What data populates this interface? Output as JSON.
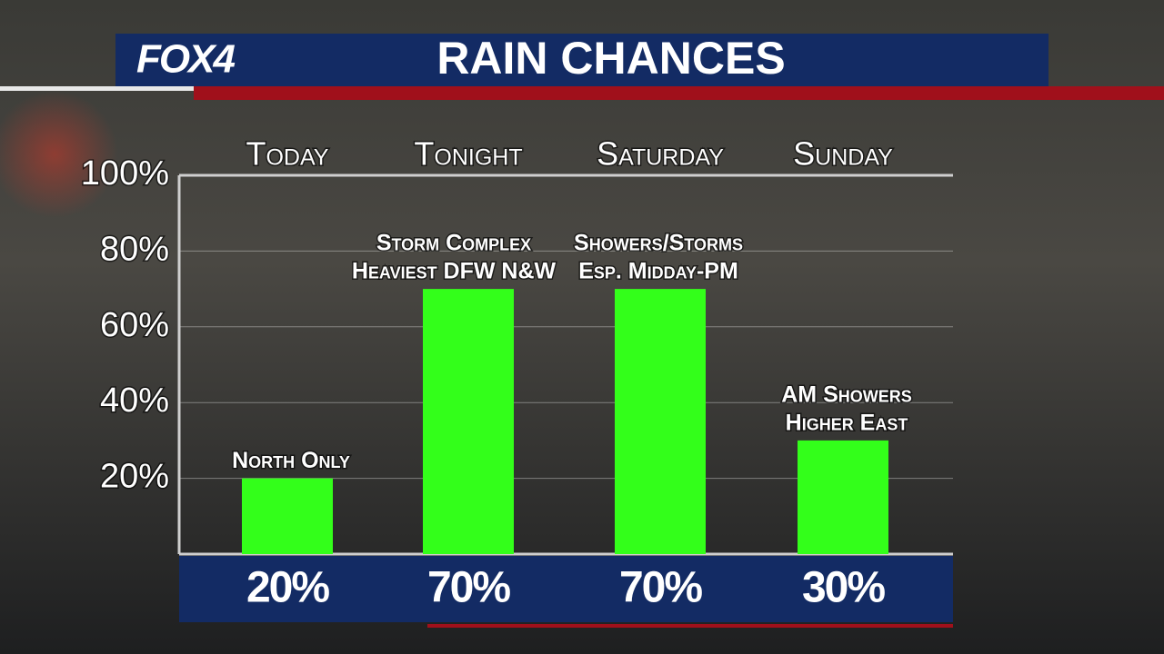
{
  "logo": "FOX4",
  "chart_data": {
    "type": "bar",
    "title": "RAIN CHANCES",
    "categories": [
      "Today",
      "Tonight",
      "Saturday",
      "Sunday"
    ],
    "values": [
      20,
      70,
      70,
      30
    ],
    "value_labels": [
      "20%",
      "70%",
      "70%",
      "30%"
    ],
    "annotations": [
      [
        "North Only"
      ],
      [
        "Storm Complex",
        "Heaviest DFW N&W"
      ],
      [
        "Showers/Storms",
        "Esp. Midday-PM"
      ],
      [
        "AM Showers",
        "Higher East"
      ]
    ],
    "color": "#33ff1a",
    "ylim": [
      0,
      100
    ],
    "yticks": [
      {
        "value": 20,
        "label": "20%"
      },
      {
        "value": 40,
        "label": "40%"
      },
      {
        "value": 60,
        "label": "60%"
      },
      {
        "value": 80,
        "label": "80%"
      },
      {
        "value": 100,
        "label": "100%"
      }
    ],
    "grid": true
  }
}
